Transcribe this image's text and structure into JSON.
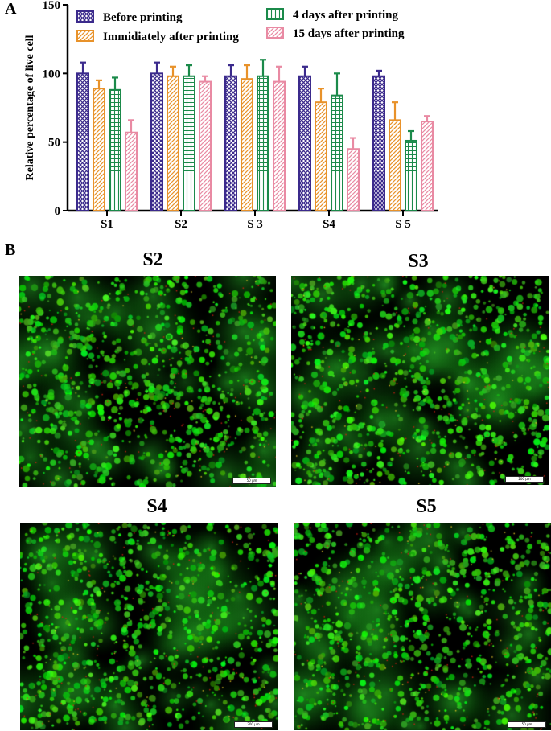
{
  "panel_a_label": "A",
  "panel_b_label": "B",
  "chart_data": {
    "type": "bar",
    "title": "",
    "xlabel": "",
    "ylabel": "Relative percentage of live cell",
    "ylim": [
      0,
      150
    ],
    "yticks": [
      0,
      50,
      100,
      150
    ],
    "categories": [
      "S1",
      "S2",
      "S 3",
      "S4",
      "S 5"
    ],
    "legend_position": "top",
    "series": [
      {
        "name": "Before printing",
        "color": "#3b2a8c",
        "pattern": "crosshatch",
        "values": [
          100,
          100,
          98,
          98,
          98
        ],
        "errors": [
          8,
          8,
          8,
          7,
          4
        ]
      },
      {
        "name": "Immidiately after printing",
        "color": "#e8922a",
        "pattern": "diagonal",
        "values": [
          89,
          98,
          96,
          79,
          66
        ],
        "errors": [
          6,
          7,
          10,
          10,
          13
        ]
      },
      {
        "name": "4 days after printing",
        "color": "#1b8a4a",
        "pattern": "grid",
        "values": [
          88,
          98,
          98,
          84,
          51
        ],
        "errors": [
          9,
          8,
          12,
          16,
          7
        ]
      },
      {
        "name": "15 days after printing",
        "color": "#e98aa3",
        "pattern": "diagonal",
        "values": [
          57,
          94,
          94,
          45,
          65
        ],
        "errors": [
          9,
          4,
          11,
          8,
          4
        ]
      }
    ]
  },
  "micrographs": [
    {
      "title": "S2",
      "scale": "50 μm",
      "seed": 11
    },
    {
      "title": "S3",
      "scale": "200 μm",
      "seed": 23
    },
    {
      "title": "S4",
      "scale": "200 μm",
      "seed": 37
    },
    {
      "title": "S5",
      "scale": "50 μm",
      "seed": 53
    }
  ]
}
